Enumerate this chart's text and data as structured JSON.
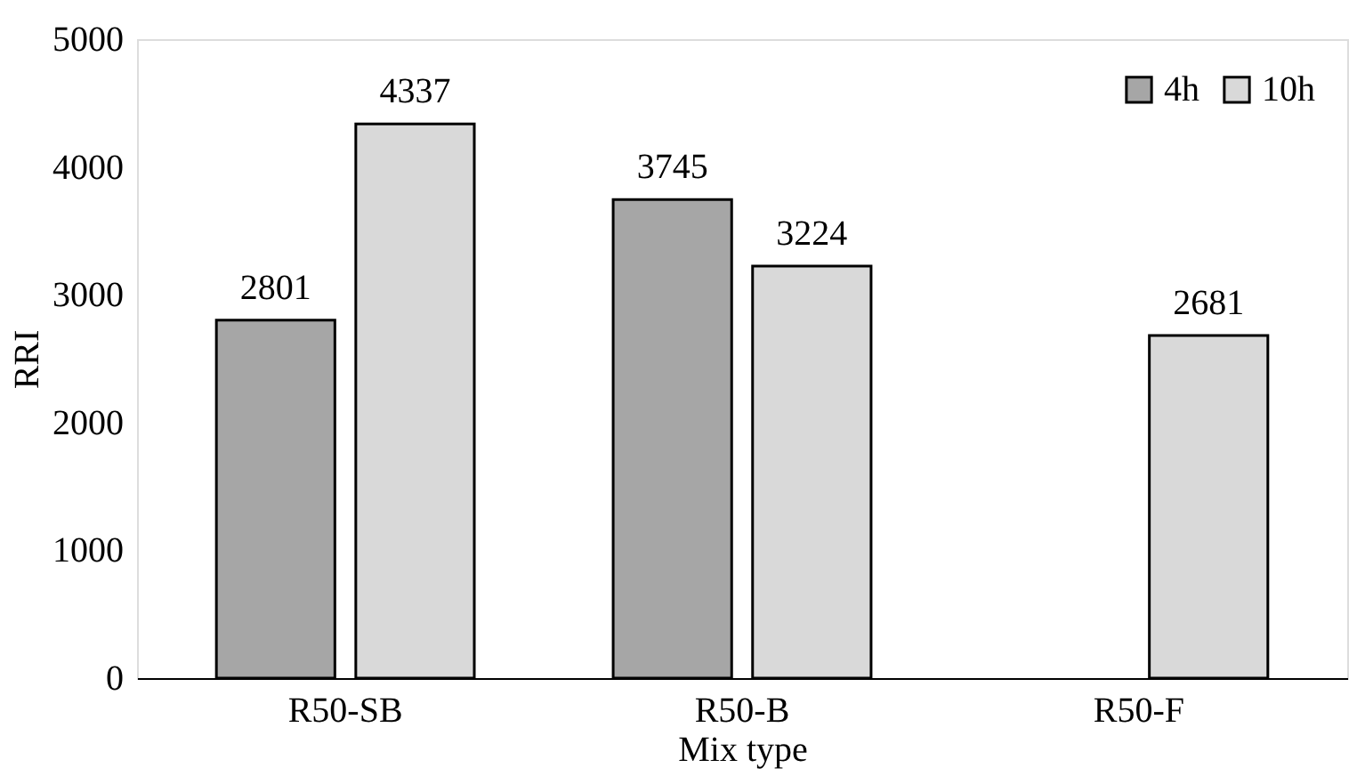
{
  "chart_data": {
    "type": "bar",
    "xlabel": "Mix type",
    "ylabel": "RRI",
    "categories": [
      "R50-SB",
      "R50-B",
      "R50-F"
    ],
    "series": [
      {
        "name": "4h",
        "color": "#a6a6a6",
        "values": [
          2801,
          3745,
          null
        ]
      },
      {
        "name": "10h",
        "color": "#d9d9d9",
        "values": [
          4337,
          3224,
          2681
        ]
      }
    ],
    "ylim": [
      0,
      5000
    ],
    "yticks": [
      0,
      1000,
      2000,
      3000,
      4000,
      5000
    ],
    "grid": false,
    "legend": "top right",
    "data_labels": true
  }
}
